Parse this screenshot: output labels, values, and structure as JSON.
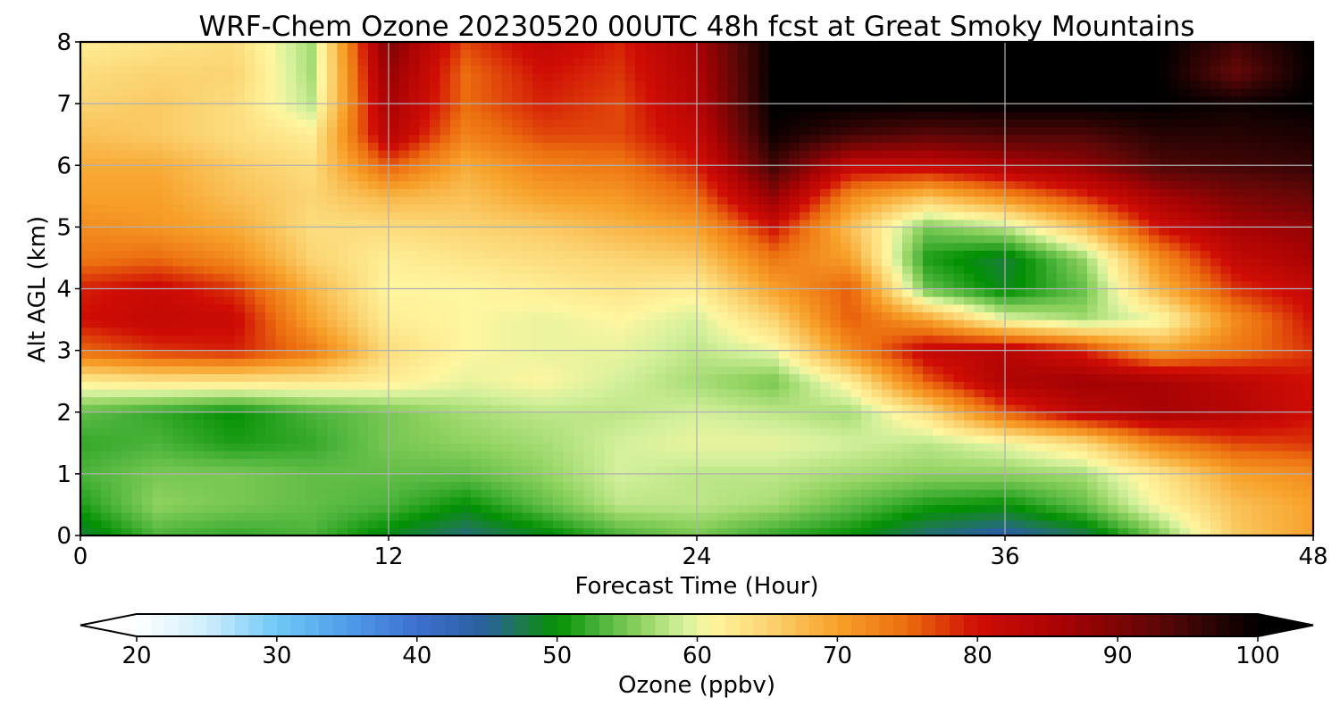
{
  "chart_data": {
    "type": "heatmap",
    "title": "WRF-Chem Ozone  20230520 00UTC 48h fcst at Great Smoky Mountains",
    "xlabel": "Forecast Time (Hour)",
    "ylabel": "Alt AGL (km)",
    "xlim": [
      0,
      48
    ],
    "ylim": [
      0,
      8
    ],
    "xticks": [
      0,
      12,
      24,
      36,
      48
    ],
    "yticks": [
      0,
      1,
      2,
      3,
      4,
      5,
      6,
      7,
      8
    ],
    "grid": true,
    "colorbar": {
      "label": "Ozone  (ppbv)",
      "range": [
        20,
        100
      ],
      "ticks": [
        20,
        30,
        40,
        50,
        60,
        70,
        80,
        90,
        100
      ],
      "extend": "both",
      "stops": [
        {
          "value": 20,
          "color": "#ffffff"
        },
        {
          "value": 25,
          "color": "#cdeefd"
        },
        {
          "value": 30,
          "color": "#6fc8f6"
        },
        {
          "value": 35,
          "color": "#4f9de8"
        },
        {
          "value": 40,
          "color": "#3d6fd0"
        },
        {
          "value": 45,
          "color": "#27619a"
        },
        {
          "value": 48,
          "color": "#1a7f3c"
        },
        {
          "value": 50,
          "color": "#039003"
        },
        {
          "value": 53,
          "color": "#4bb33a"
        },
        {
          "value": 56,
          "color": "#8fd260"
        },
        {
          "value": 59,
          "color": "#d4f09c"
        },
        {
          "value": 61,
          "color": "#fff6a0"
        },
        {
          "value": 65,
          "color": "#fbd472"
        },
        {
          "value": 70,
          "color": "#f7a12a"
        },
        {
          "value": 75,
          "color": "#ec6d0f"
        },
        {
          "value": 80,
          "color": "#cf0d05"
        },
        {
          "value": 86,
          "color": "#a80304"
        },
        {
          "value": 93,
          "color": "#5b0707"
        },
        {
          "value": 100,
          "color": "#000000"
        }
      ]
    },
    "x": [
      0,
      3,
      6,
      9,
      12,
      15,
      18,
      21,
      24,
      27,
      30,
      33,
      36,
      39,
      42,
      45,
      48
    ],
    "y": [
      0,
      0.5,
      1,
      1.5,
      2,
      2.5,
      3,
      3.5,
      4,
      4.5,
      5,
      5.5,
      6,
      6.5,
      7,
      7.5,
      8
    ],
    "z": [
      [
        48,
        53,
        52,
        53,
        49,
        46,
        49,
        53,
        55,
        52,
        50,
        46,
        44,
        47,
        55,
        66,
        70
      ],
      [
        51,
        56,
        55,
        54,
        53,
        50,
        54,
        58,
        58,
        57,
        54,
        51,
        50,
        54,
        61,
        67,
        70
      ],
      [
        53,
        55,
        55,
        54,
        54,
        54,
        56,
        59,
        58,
        58,
        57,
        56,
        56,
        57,
        63,
        70,
        72
      ],
      [
        52,
        53,
        51,
        52,
        55,
        56,
        57,
        59,
        60,
        60,
        59,
        58,
        60,
        64,
        73,
        77,
        78
      ],
      [
        54,
        52,
        50,
        53,
        55,
        57,
        58,
        58,
        59,
        58,
        57,
        64,
        76,
        83,
        86,
        84,
        80
      ],
      [
        62,
        63,
        63,
        63,
        62,
        60,
        61,
        59,
        57,
        55,
        62,
        76,
        85,
        87,
        86,
        83,
        80
      ],
      [
        75,
        78,
        79,
        74,
        64,
        61,
        60,
        60,
        58,
        60,
        72,
        82,
        84,
        79,
        70,
        74,
        78
      ],
      [
        80,
        82,
        81,
        70,
        62,
        61,
        60,
        61,
        59,
        65,
        76,
        70,
        60,
        57,
        60,
        72,
        80
      ],
      [
        79,
        81,
        78,
        68,
        61,
        61,
        62,
        63,
        62,
        70,
        76,
        54,
        49,
        54,
        68,
        78,
        82
      ],
      [
        74,
        75,
        72,
        65,
        62,
        63,
        64,
        65,
        66,
        74,
        70,
        51,
        48,
        56,
        72,
        82,
        86
      ],
      [
        72,
        71,
        69,
        64,
        64,
        65,
        66,
        68,
        70,
        80,
        67,
        55,
        58,
        67,
        80,
        86,
        88
      ],
      [
        70,
        70,
        67,
        65,
        68,
        67,
        70,
        71,
        75,
        88,
        72,
        67,
        72,
        78,
        86,
        90,
        92
      ],
      [
        69,
        69,
        66,
        64,
        76,
        69,
        73,
        74,
        79,
        95,
        82,
        82,
        85,
        88,
        94,
        95,
        96
      ],
      [
        67,
        66,
        64,
        62,
        84,
        73,
        77,
        77,
        82,
        99,
        95,
        93,
        94,
        94,
        97,
        97,
        98
      ],
      [
        65,
        66,
        64,
        58,
        86,
        75,
        79,
        77,
        84,
        100,
        100,
        100,
        100,
        100,
        100,
        99,
        100
      ],
      [
        64,
        65,
        65,
        57,
        88,
        75,
        80,
        78,
        85,
        100,
        100,
        100,
        100,
        100,
        100,
        92,
        100
      ],
      [
        62,
        63,
        64,
        57,
        90,
        77,
        82,
        79,
        86,
        100,
        100,
        100,
        100,
        100,
        100,
        95,
        100
      ]
    ]
  }
}
